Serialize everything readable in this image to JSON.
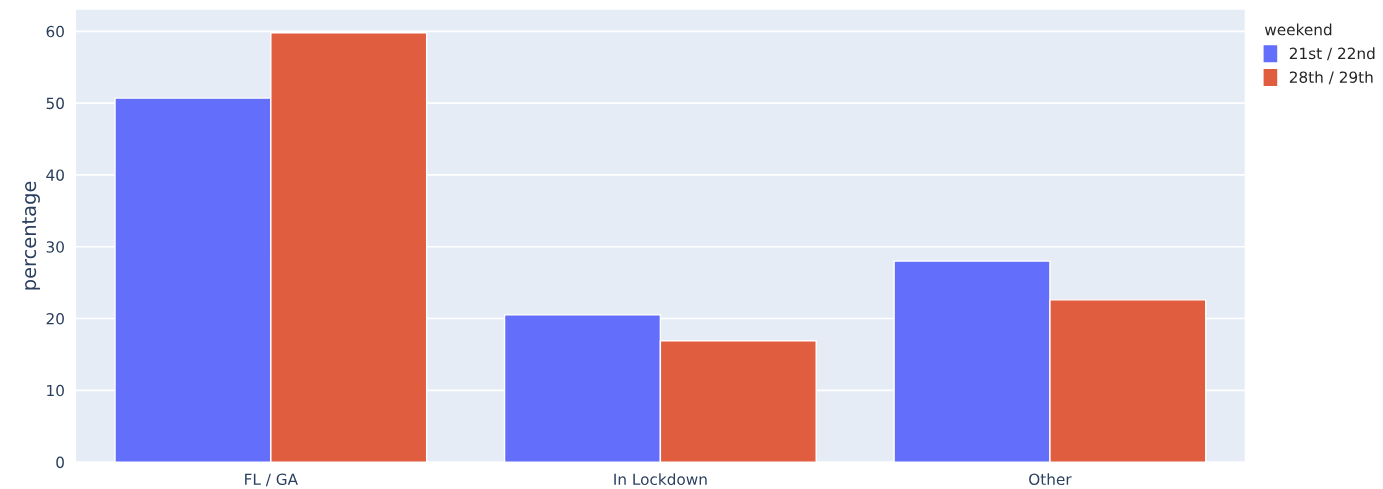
{
  "chart_data": {
    "type": "bar",
    "ylabel": "percentage",
    "legend_title": "weekend",
    "categories": [
      "FL / GA",
      "In Lockdown",
      "Other"
    ],
    "series": [
      {
        "name": "21st / 22nd",
        "color": "#636efa",
        "values": [
          50.7,
          20.5,
          28.0
        ]
      },
      {
        "name": "28th / 29th",
        "color": "#e05d40",
        "values": [
          59.8,
          16.9,
          22.6
        ]
      }
    ],
    "ylim": [
      0,
      63
    ],
    "yticks": [
      0,
      10,
      20,
      30,
      40,
      50,
      60
    ],
    "grid": "y",
    "legend": "top right"
  }
}
